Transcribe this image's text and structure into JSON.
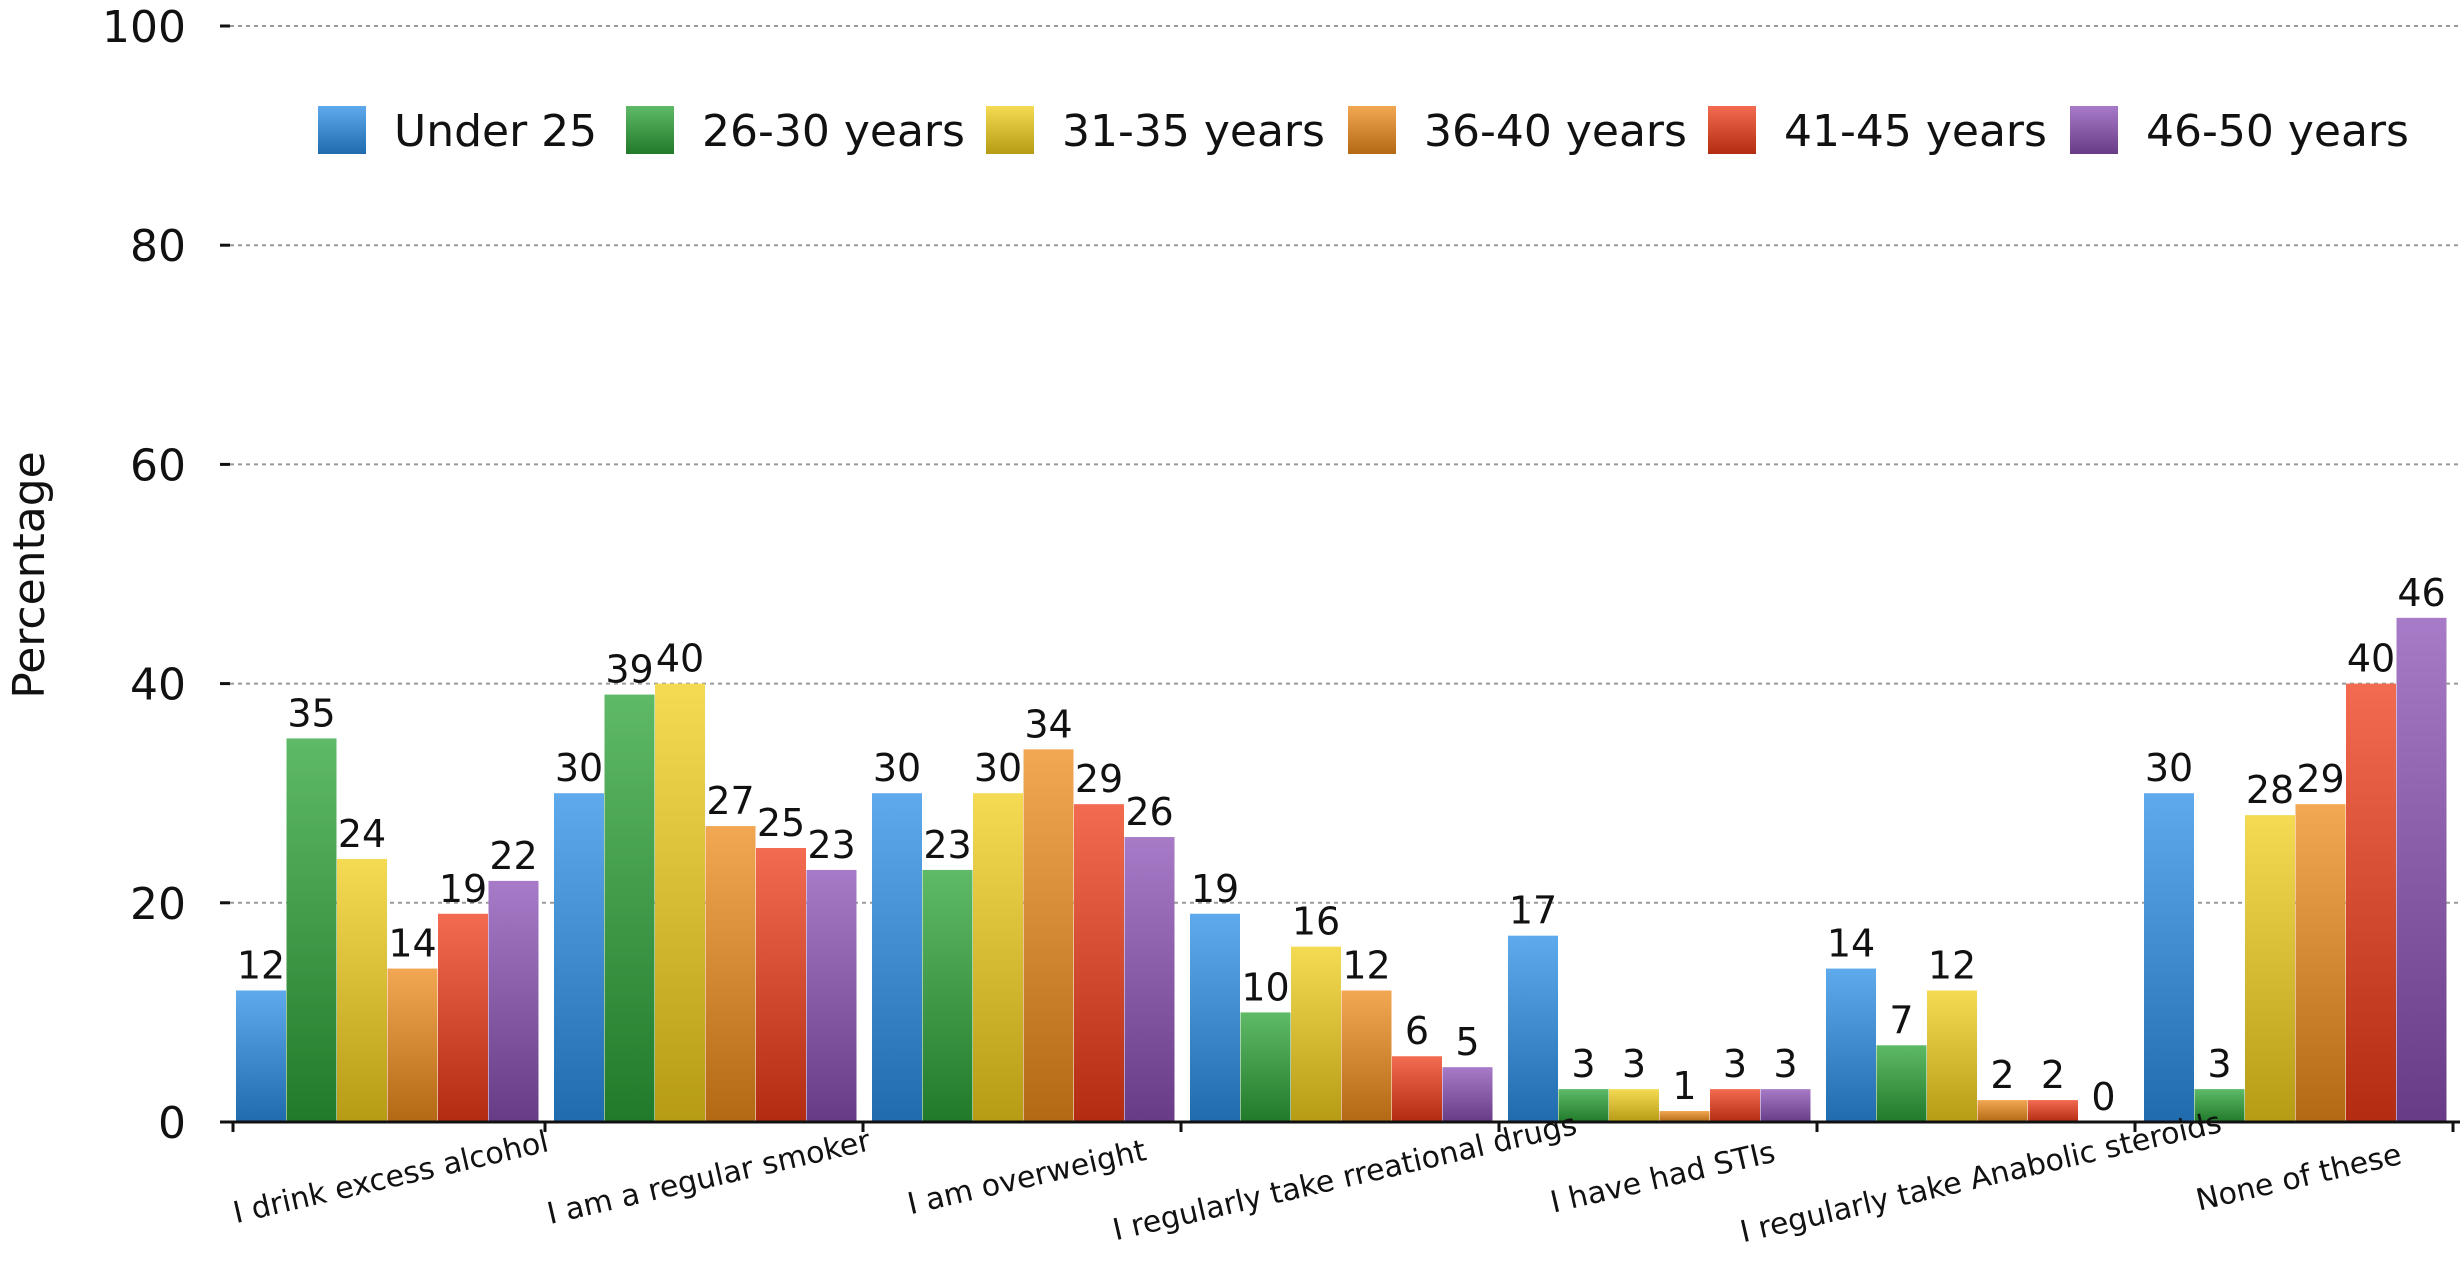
{
  "chart_data": {
    "type": "bar",
    "title": "",
    "xlabel": "",
    "ylabel": "Percentage",
    "ylim": [
      0,
      100
    ],
    "yticks": [
      0,
      20,
      40,
      60,
      80,
      100
    ],
    "grid": true,
    "legend_position": "top",
    "categories": [
      "I drink excess alcohol",
      "I am a regular smoker",
      "I am overweight",
      "I regularly take rreational drugs",
      "I have had STIs",
      "I regularly take Anabolic steroids",
      "None of these"
    ],
    "series": [
      {
        "name": "Under 25",
        "color": "#2a8ee6",
        "values": [
          12,
          30,
          30,
          19,
          17,
          14,
          30
        ]
      },
      {
        "name": "26-30 years",
        "color": "#2aa336",
        "values": [
          35,
          39,
          23,
          10,
          3,
          7,
          3
        ]
      },
      {
        "name": "31-35 years",
        "color": "#f2cf1a",
        "values": [
          24,
          40,
          30,
          16,
          3,
          12,
          28
        ]
      },
      {
        "name": "36-40 years",
        "color": "#ee8a1a",
        "values": [
          14,
          27,
          34,
          12,
          1,
          2,
          29
        ]
      },
      {
        "name": "41-45 years",
        "color": "#ef3a16",
        "values": [
          19,
          25,
          29,
          6,
          3,
          2,
          40
        ]
      },
      {
        "name": "46-50 years",
        "color": "#8a4fb4",
        "values": [
          22,
          23,
          26,
          5,
          3,
          0,
          46
        ]
      }
    ]
  }
}
